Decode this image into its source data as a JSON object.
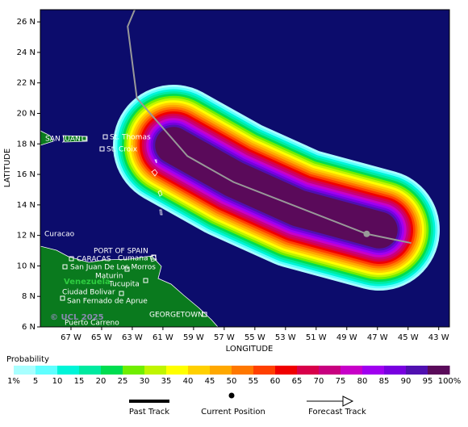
{
  "map": {
    "ylabel": "LATITUDE",
    "xlabel": "LONGITUDE",
    "xlim": [
      -69,
      -42.3
    ],
    "ylim": [
      6,
      26.8
    ],
    "xticks": [
      {
        "value": -67,
        "label": "67 W"
      },
      {
        "value": -65,
        "label": "65 W"
      },
      {
        "value": -63,
        "label": "63 W"
      },
      {
        "value": -61,
        "label": "61 W"
      },
      {
        "value": -59,
        "label": "59 W"
      },
      {
        "value": -57,
        "label": "57 W"
      },
      {
        "value": -55,
        "label": "55 W"
      },
      {
        "value": -53,
        "label": "53 W"
      },
      {
        "value": -51,
        "label": "51 W"
      },
      {
        "value": -49,
        "label": "49 W"
      },
      {
        "value": -47,
        "label": "47 W"
      },
      {
        "value": -45,
        "label": "45 W"
      },
      {
        "value": -43,
        "label": "43 W"
      }
    ],
    "yticks": [
      {
        "value": 6,
        "label": "6 N"
      },
      {
        "value": 8,
        "label": "8 N"
      },
      {
        "value": 10,
        "label": "10 N"
      },
      {
        "value": 12,
        "label": "12 N"
      },
      {
        "value": 14,
        "label": "14 N"
      },
      {
        "value": 16,
        "label": "16 N"
      },
      {
        "value": 18,
        "label": "18 N"
      },
      {
        "value": 20,
        "label": "20 N"
      },
      {
        "value": 22,
        "label": "22 N"
      },
      {
        "value": 24,
        "label": "24 N"
      },
      {
        "value": 26,
        "label": "26 N"
      }
    ],
    "track": {
      "lon": [
        -62.8,
        -63.3,
        -62.7,
        -59.4,
        -56.4,
        -47.7,
        -44.8
      ],
      "lat": [
        26.9,
        25.7,
        21.0,
        17.2,
        15.5,
        12.1,
        11.5
      ],
      "color": "#999999"
    },
    "current_position": {
      "lon": -47.7,
      "lat": 12.1
    },
    "places": [
      "SAN JUAN",
      "St. Thomas",
      "St. Croix",
      "Curacao",
      "PORT OF SPAIN",
      "CARACAS",
      "Cumana",
      "San Juan De Los Morros",
      "Maturin",
      "Tucupita",
      "Venezuela",
      "Ciudad Bolivar",
      "San Fernado de Aprue",
      "GEORGETOWN",
      "Puerto Carreno"
    ],
    "copyright": "© UCL 2025"
  },
  "legend": {
    "title": "Probability",
    "ticks": [
      {
        "value": 1,
        "label": "1%"
      },
      5,
      10,
      15,
      20,
      25,
      30,
      35,
      40,
      45,
      50,
      55,
      60,
      65,
      70,
      75,
      80,
      85,
      90,
      95,
      {
        "value": 100,
        "label": "100%"
      }
    ],
    "colors": [
      "#a8ffff",
      "#60ffff",
      "#00f5d8",
      "#00eaa0",
      "#00dd50",
      "#70ee00",
      "#c0f500",
      "#ffff00",
      "#ffd000",
      "#ffa800",
      "#ff7800",
      "#ff4000",
      "#f00000",
      "#d8004a",
      "#c8007f",
      "#c800c8",
      "#a000f0",
      "#7800e0",
      "#5010b0",
      "#5a0a5a"
    ],
    "past_track": "Past Track",
    "current": "Current Position",
    "forecast_track": "Forecast Track"
  }
}
